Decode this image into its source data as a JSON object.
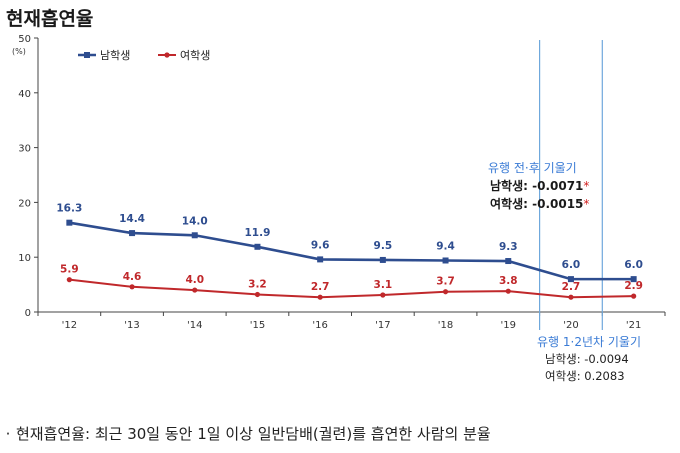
{
  "title": "현재흡연율",
  "chart_data": {
    "type": "line",
    "title": "현재흡연율",
    "categories": [
      "'12",
      "'13",
      "'14",
      "'15",
      "'16",
      "'17",
      "'18",
      "'19",
      "'20",
      "'21"
    ],
    "y_ticks": [
      "0",
      "10",
      "20",
      "30",
      "40",
      "50"
    ],
    "ylim": [
      0,
      50
    ],
    "yunit": "(%)",
    "grid": false,
    "legend": "top-left",
    "series": [
      {
        "name": "남학생",
        "color": "#2e4d8f",
        "values": [
          16.3,
          14.4,
          14.0,
          11.9,
          9.6,
          9.5,
          9.4,
          9.3,
          6.0,
          6.0
        ],
        "labels": [
          "16.3",
          "14.4",
          "14.0",
          "11.9",
          "9.6",
          "9.5",
          "9.4",
          "9.3",
          "6.0",
          "6.0"
        ]
      },
      {
        "name": "여학생",
        "color": "#c0282b",
        "values": [
          5.9,
          4.6,
          4.0,
          3.2,
          2.7,
          3.1,
          3.7,
          3.8,
          2.7,
          2.9
        ],
        "labels": [
          "5.9",
          "4.6",
          "4.0",
          "3.2",
          "2.7",
          "3.1",
          "3.7",
          "3.8",
          "2.7",
          "2.9"
        ]
      }
    ]
  },
  "annotations": {
    "pre_post": {
      "title": "유행 전·후 기울기",
      "male_label": "남학생:",
      "male_value": "-0.0071",
      "male_mark": "*",
      "female_label": "여학생:",
      "female_value": "-0.0015",
      "female_mark": "*"
    },
    "year12": {
      "title": "유행 1·2년차 기울기",
      "male_label": "남학생:",
      "male_value": "-0.0094",
      "female_label": "여학생:",
      "female_value": "0.2083"
    }
  },
  "footnote": {
    "bullet": "·",
    "text": "현재흡연율: 최근 30일 동안 1일 이상 일반담배(궐련)를 흡연한 사람의 분율"
  },
  "colors": {
    "accent_blue": "#3a7bd5",
    "asterisk": "#d11f1f",
    "axis": "#444444",
    "guide": "#6fa8dc"
  }
}
